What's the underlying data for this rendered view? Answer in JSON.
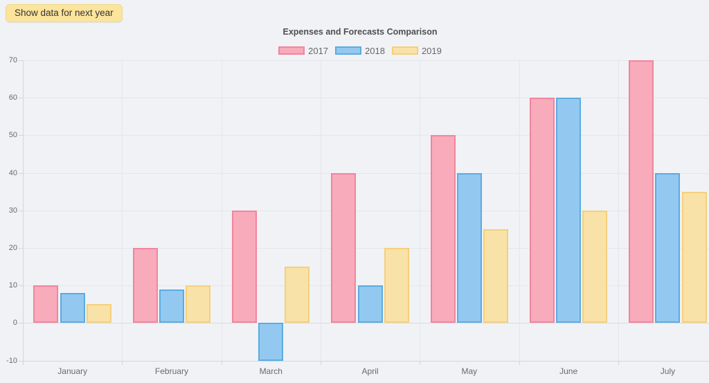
{
  "toolbar": {
    "show_next_year_label": "Show data for next year"
  },
  "chart_data": {
    "type": "bar",
    "title": "Expenses and Forecasts Comparison",
    "categories": [
      "January",
      "February",
      "March",
      "April",
      "May",
      "June",
      "July"
    ],
    "series": [
      {
        "name": "2017",
        "values": [
          10,
          20,
          30,
          40,
          50,
          60,
          70
        ],
        "fill": "#f8abbb",
        "border": "#f2849e"
      },
      {
        "name": "2018",
        "values": [
          8,
          9,
          -10,
          10,
          40,
          60,
          40
        ],
        "fill": "#93c9f0",
        "border": "#5cabe2"
      },
      {
        "name": "2019",
        "values": [
          5,
          10,
          15,
          20,
          25,
          30,
          35
        ],
        "fill": "#f9e2a7",
        "border": "#f6cf7c"
      }
    ],
    "ylim": [
      -10,
      70
    ],
    "ytick_step": 10,
    "grid": true,
    "legend_position": "top",
    "xlabel": "",
    "ylabel": ""
  },
  "colors": {
    "background": "#f0f2f5",
    "gridline": "#e4e6ea",
    "zero_line": "#d9dbdf",
    "axis_line": "#d2d5da",
    "tick_label": "#66696f",
    "title": "#4f4f4f",
    "button_bg": "#fce49d",
    "button_border": "#eed88f",
    "button_text": "#333333"
  }
}
